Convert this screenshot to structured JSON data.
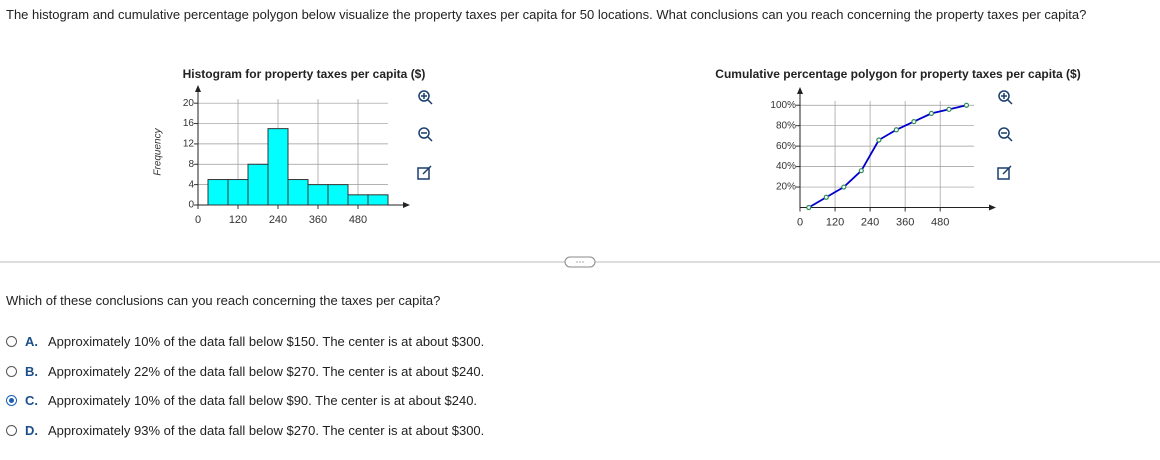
{
  "question": "The histogram and cumulative percentage polygon below visualize the property taxes per capita for 50 locations. What conclusions can you reach concerning the property taxes per capita?",
  "chart_data": [
    {
      "type": "histogram",
      "title": "Histogram for property taxes per capita ($)",
      "ylabel": "Frequency",
      "bins": [
        30,
        90,
        150,
        210,
        270,
        330,
        390,
        450,
        510,
        570
      ],
      "values": [
        5,
        5,
        8,
        15,
        5,
        4,
        4,
        2,
        2
      ],
      "color": "#00ffff",
      "xlim": [
        0,
        600
      ],
      "xticks": [
        0,
        120,
        240,
        360,
        480
      ],
      "ylim": [
        0,
        22
      ],
      "yticks": [
        0,
        4,
        8,
        12,
        16,
        20
      ],
      "grid": true
    },
    {
      "type": "line",
      "title": "Cumulative percentage polygon for property taxes per capita ($)",
      "x": [
        30,
        90,
        150,
        210,
        270,
        330,
        390,
        450,
        510,
        570
      ],
      "values": [
        0,
        10,
        20,
        36,
        66,
        76,
        84,
        92,
        96,
        100
      ],
      "color": "#0000cc",
      "marker_color": "#2e8b57",
      "xlim": [
        0,
        630
      ],
      "xticks": [
        0,
        120,
        240,
        360,
        480
      ],
      "ylim": [
        0,
        110
      ],
      "yticks": [
        {
          "value": 20,
          "label": "20%"
        },
        {
          "value": 40,
          "label": "40%"
        },
        {
          "value": 60,
          "label": "60%"
        },
        {
          "value": 80,
          "label": "80%"
        },
        {
          "value": 100,
          "label": "100%"
        }
      ],
      "grid": true
    }
  ],
  "prompt": "Which of these conclusions can you reach concerning the taxes per capita?",
  "options": [
    {
      "letter": "A.",
      "text": "Approximately 10% of the data fall below $150. The center is at about $300."
    },
    {
      "letter": "B.",
      "text": "Approximately 22% of the data fall below $270. The center is at about $240."
    },
    {
      "letter": "C.",
      "text": "Approximately 10% of the data fall below $90. The center is at about $240."
    },
    {
      "letter": "D.",
      "text": "Approximately 93% of the data fall below $270. The center is at about $300."
    }
  ],
  "selected": 2
}
